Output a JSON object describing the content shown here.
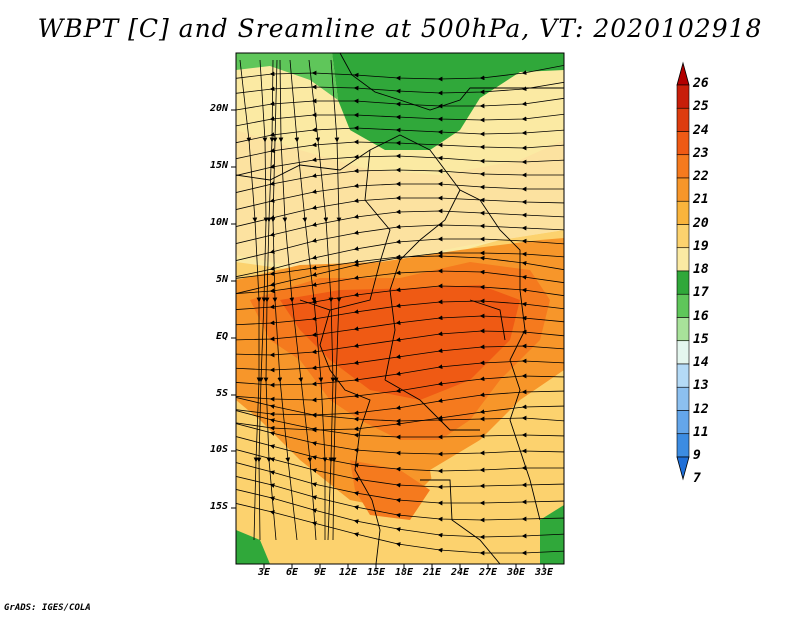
{
  "title": "WBPT [C] and Sreamline at 500hPa, VT: 2020102918",
  "credit": "GrADS: IGES/COLA",
  "map": {
    "lat_ticks": [
      "20N",
      "15N",
      "10N",
      "5N",
      "EQ",
      "5S",
      "10S",
      "15S"
    ],
    "lon_ticks": [
      "3E",
      "6E",
      "9E",
      "12E",
      "15E",
      "18E",
      "21E",
      "24E",
      "27E",
      "30E",
      "33E"
    ]
  },
  "colorbar": {
    "labels": [
      "26",
      "25",
      "24",
      "23",
      "22",
      "21",
      "20",
      "19",
      "18",
      "17",
      "16",
      "15",
      "14",
      "13",
      "12",
      "11",
      "9",
      "7"
    ],
    "colors": [
      "#b20000",
      "#c81e0a",
      "#dd3c0e",
      "#ef5a14",
      "#f57a1e",
      "#f7962a",
      "#f9b43c",
      "#fcd26e",
      "#fbeaa3",
      "#30a83a",
      "#5fc65a",
      "#a8e29a",
      "#e4f6ee",
      "#b4daf6",
      "#8cc0f0",
      "#64a6ea",
      "#3c8ce2",
      "#1f6fd8"
    ]
  }
}
